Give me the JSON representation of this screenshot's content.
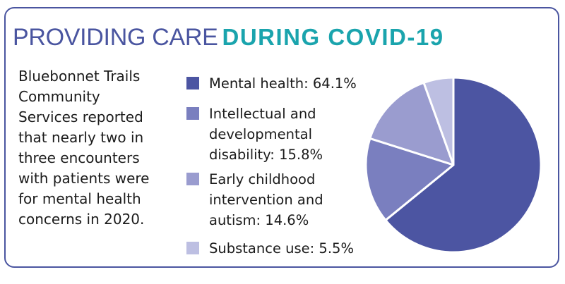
{
  "title": {
    "part1": "PROVIDING CARE",
    "part2": "DURING COVID-19"
  },
  "intro_text": "Bluebonnet Trails Community Services reported that nearly two in three encounters with patients were for mental health concerns in 2020.",
  "colors": {
    "border": "#4a55a0",
    "title_primary": "#4a55a0",
    "title_accent": "#1aa4ad"
  },
  "chart_data": {
    "type": "pie",
    "categories": [
      "Mental health",
      "Intellectual and developmental disability",
      "Early childhood intervention and autism",
      "Substance use"
    ],
    "values": [
      64.1,
      15.8,
      14.6,
      5.5
    ],
    "legend_labels": [
      "Mental health: 64.1%",
      "Intellectual and developmental disability: 15.8%",
      "Early childhood intervention and autism: 14.6%",
      "Substance use: 5.5%"
    ],
    "colors": [
      "#4c55a2",
      "#7a7fbf",
      "#9a9ccf",
      "#bdbfe2"
    ],
    "unit": "%"
  }
}
